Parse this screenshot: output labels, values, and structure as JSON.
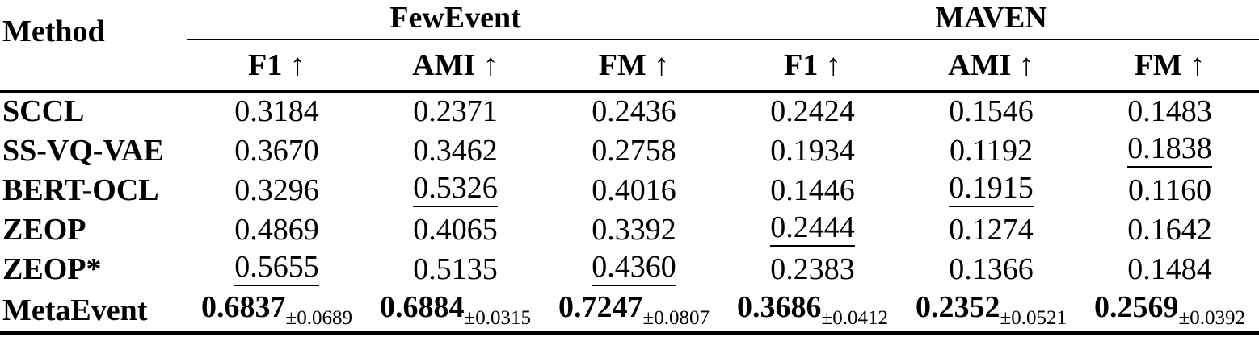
{
  "table": {
    "method_label": "Method",
    "groups": [
      {
        "label": "FewEvent"
      },
      {
        "label": "MAVEN"
      }
    ],
    "metric_labels": [
      "F1 ↑",
      "AMI ↑",
      "FM ↑",
      "F1 ↑",
      "AMI ↑",
      "FM ↑"
    ],
    "rows": [
      {
        "method": "SCCL",
        "cells": [
          {
            "v": "0.3184"
          },
          {
            "v": "0.2371"
          },
          {
            "v": "0.2436"
          },
          {
            "v": "0.2424"
          },
          {
            "v": "0.1546"
          },
          {
            "v": "0.1483"
          }
        ]
      },
      {
        "method": "SS-VQ-VAE",
        "cells": [
          {
            "v": "0.3670"
          },
          {
            "v": "0.3462"
          },
          {
            "v": "0.2758"
          },
          {
            "v": "0.1934"
          },
          {
            "v": "0.1192"
          },
          {
            "v": "0.1838",
            "underline": true
          }
        ]
      },
      {
        "method": "BERT-OCL",
        "cells": [
          {
            "v": "0.3296"
          },
          {
            "v": "0.5326",
            "underline": true
          },
          {
            "v": "0.4016"
          },
          {
            "v": "0.1446"
          },
          {
            "v": "0.1915",
            "underline": true
          },
          {
            "v": "0.1160"
          }
        ]
      },
      {
        "method": "ZEOP",
        "cells": [
          {
            "v": "0.4869"
          },
          {
            "v": "0.4065"
          },
          {
            "v": "0.3392"
          },
          {
            "v": "0.2444",
            "underline": true
          },
          {
            "v": "0.1274"
          },
          {
            "v": "0.1642"
          }
        ]
      },
      {
        "method": "ZEOP*",
        "cells": [
          {
            "v": "0.5655",
            "underline": true
          },
          {
            "v": "0.5135"
          },
          {
            "v": "0.4360",
            "underline": true
          },
          {
            "v": "0.2383"
          },
          {
            "v": "0.1366"
          },
          {
            "v": "0.1484"
          }
        ]
      },
      {
        "method": "MetaEvent",
        "cells": [
          {
            "v": "0.6837",
            "bold": true,
            "sub": "±0.0689"
          },
          {
            "v": "0.6884",
            "bold": true,
            "sub": "±0.0315"
          },
          {
            "v": "0.7247",
            "bold": true,
            "sub": "±0.0807"
          },
          {
            "v": "0.3686",
            "bold": true,
            "sub": "±0.0412"
          },
          {
            "v": "0.2352",
            "bold": true,
            "sub": "±0.0521"
          },
          {
            "v": "0.2569",
            "bold": true,
            "sub": "±0.0392"
          }
        ]
      }
    ]
  }
}
